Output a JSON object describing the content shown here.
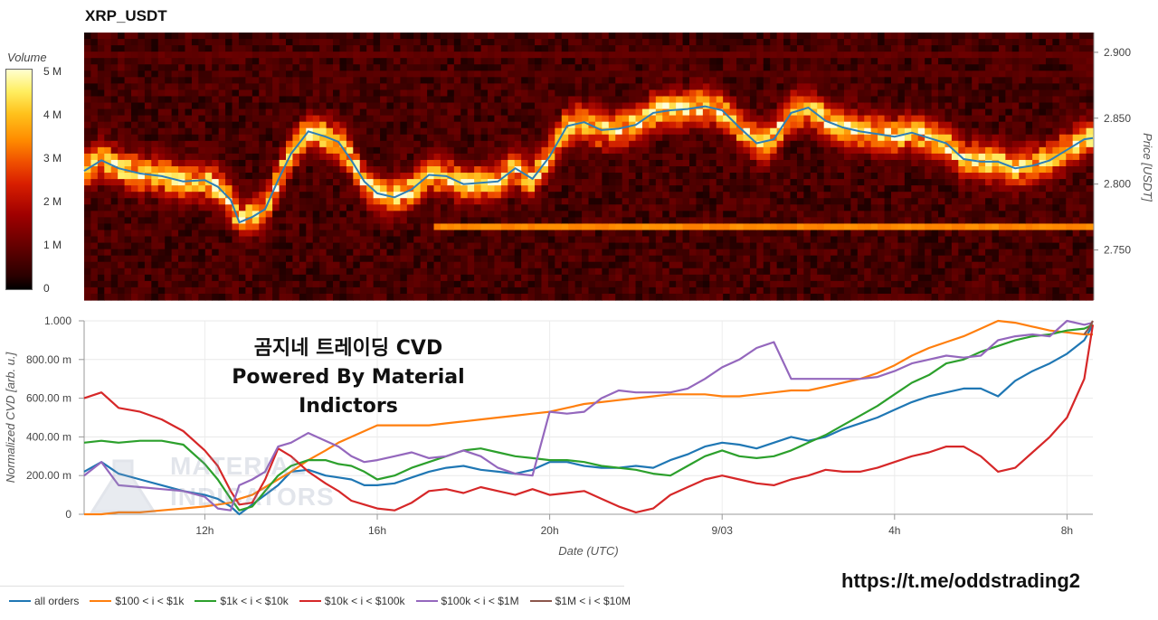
{
  "title": "XRP_USDT",
  "overlay": {
    "line1": "곰지네 트레이딩 CVD",
    "line2": "Powered By Material Indictors"
  },
  "watermark": {
    "line1": "MATERIAL",
    "line2": "INDICATORS"
  },
  "url": "https://t.me/oddstrading2",
  "colors": {
    "all_orders": "#1f77b4",
    "100_1k": "#ff7f0e",
    "1k_10k": "#2ca02c",
    "10k_100k": "#d62728",
    "100k_1M": "#9467bd",
    "1M_10M": "#8c564b"
  },
  "chart_data": [
    {
      "type": "heatmap",
      "colorbar": {
        "title": "Volume",
        "ticks": [
          "5 M",
          "4 M",
          "3 M",
          "2 M",
          "1 M",
          "0"
        ],
        "tick_values": [
          5,
          4,
          3,
          2,
          1,
          0
        ],
        "range": [
          0,
          5.4
        ]
      },
      "yaxis": {
        "label": "Price [USDT]",
        "ticks": [
          "2.900",
          "2.850",
          "2.800",
          "2.750"
        ],
        "tick_values": [
          2.9,
          2.85,
          2.8,
          2.75
        ],
        "range": [
          2.712,
          2.915
        ]
      },
      "x_range_hours": [
        9.2,
        32.6
      ],
      "persistent_bands": [
        {
          "price": 2.768,
          "start_hour": 17.3,
          "end_hour": 32.6,
          "volume": 3.6
        },
        {
          "price": 2.9,
          "start_hour": 9.2,
          "end_hour": 32.6,
          "volume": 0.9
        },
        {
          "price": 2.885,
          "start_hour": 14.8,
          "end_hour": 32.6,
          "volume": 0.7
        }
      ],
      "price_line": {
        "x": [
          9.2,
          9.6,
          10.0,
          10.5,
          11.0,
          11.5,
          12.0,
          12.3,
          12.6,
          12.8,
          13.1,
          13.4,
          13.7,
          14.0,
          14.4,
          14.8,
          15.1,
          15.4,
          15.7,
          16.0,
          16.4,
          16.8,
          17.2,
          17.6,
          18.0,
          18.4,
          18.8,
          19.2,
          19.6,
          20.0,
          20.4,
          20.8,
          21.2,
          21.6,
          22.0,
          22.4,
          22.8,
          23.2,
          23.6,
          24.0,
          24.4,
          24.8,
          25.2,
          25.6,
          26.0,
          26.4,
          26.8,
          27.2,
          27.6,
          28.0,
          28.4,
          28.8,
          29.2,
          29.6,
          30.0,
          30.4,
          30.8,
          31.2,
          31.6,
          32.0,
          32.4,
          32.6
        ],
        "y": [
          2.81,
          2.818,
          2.812,
          2.808,
          2.806,
          2.802,
          2.803,
          2.798,
          2.788,
          2.771,
          2.775,
          2.781,
          2.803,
          2.823,
          2.84,
          2.836,
          2.832,
          2.818,
          2.802,
          2.793,
          2.79,
          2.796,
          2.807,
          2.806,
          2.8,
          2.801,
          2.802,
          2.812,
          2.804,
          2.821,
          2.844,
          2.847,
          2.841,
          2.842,
          2.845,
          2.854,
          2.856,
          2.857,
          2.859,
          2.856,
          2.843,
          2.831,
          2.834,
          2.854,
          2.858,
          2.848,
          2.843,
          2.84,
          2.838,
          2.836,
          2.839,
          2.835,
          2.831,
          2.819,
          2.817,
          2.817,
          2.812,
          2.814,
          2.818,
          2.826,
          2.834,
          2.835
        ],
        "color": "#2f7fb5"
      }
    },
    {
      "type": "line",
      "xlabel": "Date (UTC)",
      "ylabel": "Normalized CVD [arb. u.]",
      "xlim": [
        9.2,
        32.6
      ],
      "ylim": [
        0,
        1.0
      ],
      "xticks": [
        "12h",
        "16h",
        "20h",
        "9/03",
        "4h",
        "8h"
      ],
      "xtick_values": [
        12,
        16,
        20,
        24,
        28,
        32
      ],
      "yticks": [
        "0",
        "200.00 m",
        "400.00 m",
        "600.00 m",
        "800.00 m",
        "1.000"
      ],
      "ytick_values": [
        0,
        0.2,
        0.4,
        0.6,
        0.8,
        1.0
      ],
      "series": [
        {
          "name": "all orders",
          "color": "#1f77b4",
          "x": [
            9.2,
            9.6,
            10.0,
            10.5,
            11.0,
            11.5,
            12.0,
            12.3,
            12.6,
            12.8,
            13.1,
            13.4,
            13.7,
            14.0,
            14.4,
            14.8,
            15.1,
            15.4,
            15.7,
            16.0,
            16.4,
            16.8,
            17.2,
            17.6,
            18.0,
            18.4,
            18.8,
            19.2,
            19.6,
            20.0,
            20.4,
            20.8,
            21.2,
            21.6,
            22.0,
            22.4,
            22.8,
            23.2,
            23.6,
            24.0,
            24.4,
            24.8,
            25.2,
            25.6,
            26.0,
            26.4,
            26.8,
            27.2,
            27.6,
            28.0,
            28.4,
            28.8,
            29.2,
            29.6,
            30.0,
            30.4,
            30.8,
            31.2,
            31.6,
            32.0,
            32.4,
            32.6
          ],
          "y": [
            0.22,
            0.27,
            0.21,
            0.18,
            0.15,
            0.12,
            0.1,
            0.08,
            0.04,
            0.0,
            0.05,
            0.1,
            0.15,
            0.22,
            0.23,
            0.2,
            0.19,
            0.18,
            0.15,
            0.15,
            0.16,
            0.19,
            0.22,
            0.24,
            0.25,
            0.23,
            0.22,
            0.21,
            0.23,
            0.27,
            0.27,
            0.25,
            0.24,
            0.24,
            0.25,
            0.24,
            0.28,
            0.31,
            0.35,
            0.37,
            0.36,
            0.34,
            0.37,
            0.4,
            0.38,
            0.4,
            0.44,
            0.47,
            0.5,
            0.54,
            0.58,
            0.61,
            0.63,
            0.65,
            0.65,
            0.61,
            0.69,
            0.74,
            0.78,
            0.83,
            0.9,
            0.98
          ]
        },
        {
          "name": "$100 < i < $1k",
          "color": "#ff7f0e",
          "x": [
            9.2,
            9.6,
            10.0,
            10.5,
            11.0,
            11.5,
            12.0,
            12.3,
            12.6,
            12.8,
            13.1,
            13.4,
            13.7,
            14.0,
            14.4,
            14.8,
            15.1,
            15.4,
            15.7,
            16.0,
            16.4,
            16.8,
            17.2,
            17.6,
            18.0,
            18.4,
            18.8,
            19.2,
            19.6,
            20.0,
            20.4,
            20.8,
            21.2,
            21.6,
            22.0,
            22.4,
            22.8,
            23.2,
            23.6,
            24.0,
            24.4,
            24.8,
            25.2,
            25.6,
            26.0,
            26.4,
            26.8,
            27.2,
            27.6,
            28.0,
            28.4,
            28.8,
            29.2,
            29.6,
            30.0,
            30.4,
            30.8,
            31.2,
            31.6,
            32.0,
            32.4,
            32.6
          ],
          "y": [
            0.0,
            0.0,
            0.01,
            0.01,
            0.02,
            0.03,
            0.04,
            0.05,
            0.06,
            0.08,
            0.1,
            0.14,
            0.18,
            0.22,
            0.28,
            0.33,
            0.37,
            0.4,
            0.43,
            0.46,
            0.46,
            0.46,
            0.46,
            0.47,
            0.48,
            0.49,
            0.5,
            0.51,
            0.52,
            0.53,
            0.55,
            0.57,
            0.58,
            0.59,
            0.6,
            0.61,
            0.62,
            0.62,
            0.62,
            0.61,
            0.61,
            0.62,
            0.63,
            0.64,
            0.64,
            0.66,
            0.68,
            0.7,
            0.73,
            0.77,
            0.82,
            0.86,
            0.89,
            0.92,
            0.96,
            1.0,
            0.99,
            0.97,
            0.95,
            0.94,
            0.93,
            0.93
          ]
        },
        {
          "name": "$1k < i < $10k",
          "color": "#2ca02c",
          "x": [
            9.2,
            9.6,
            10.0,
            10.5,
            11.0,
            11.5,
            12.0,
            12.3,
            12.6,
            12.8,
            13.1,
            13.4,
            13.7,
            14.0,
            14.4,
            14.8,
            15.1,
            15.4,
            15.7,
            16.0,
            16.4,
            16.8,
            17.2,
            17.6,
            18.0,
            18.4,
            18.8,
            19.2,
            19.6,
            20.0,
            20.4,
            20.8,
            21.2,
            21.6,
            22.0,
            22.4,
            22.8,
            23.2,
            23.6,
            24.0,
            24.4,
            24.8,
            25.2,
            25.6,
            26.0,
            26.4,
            26.8,
            27.2,
            27.6,
            28.0,
            28.4,
            28.8,
            29.2,
            29.6,
            30.0,
            30.4,
            30.8,
            31.2,
            31.6,
            32.0,
            32.4,
            32.6
          ],
          "y": [
            0.37,
            0.38,
            0.37,
            0.38,
            0.38,
            0.36,
            0.26,
            0.18,
            0.08,
            0.02,
            0.04,
            0.12,
            0.2,
            0.25,
            0.28,
            0.28,
            0.26,
            0.25,
            0.22,
            0.18,
            0.2,
            0.24,
            0.27,
            0.3,
            0.33,
            0.34,
            0.32,
            0.3,
            0.29,
            0.28,
            0.28,
            0.27,
            0.25,
            0.24,
            0.23,
            0.21,
            0.2,
            0.25,
            0.3,
            0.33,
            0.3,
            0.29,
            0.3,
            0.33,
            0.37,
            0.41,
            0.46,
            0.51,
            0.56,
            0.62,
            0.68,
            0.72,
            0.78,
            0.8,
            0.84,
            0.87,
            0.9,
            0.92,
            0.93,
            0.95,
            0.96,
            0.98
          ]
        },
        {
          "name": "$10k < i < $100k",
          "color": "#d62728",
          "x": [
            9.2,
            9.6,
            10.0,
            10.5,
            11.0,
            11.5,
            12.0,
            12.3,
            12.6,
            12.8,
            13.1,
            13.4,
            13.7,
            14.0,
            14.4,
            14.8,
            15.1,
            15.4,
            15.7,
            16.0,
            16.4,
            16.8,
            17.2,
            17.6,
            18.0,
            18.4,
            18.8,
            19.2,
            19.6,
            20.0,
            20.4,
            20.8,
            21.2,
            21.6,
            22.0,
            22.4,
            22.8,
            23.2,
            23.6,
            24.0,
            24.4,
            24.8,
            25.2,
            25.6,
            26.0,
            26.4,
            26.8,
            27.2,
            27.6,
            28.0,
            28.4,
            28.8,
            29.2,
            29.6,
            30.0,
            30.4,
            30.8,
            31.2,
            31.6,
            32.0,
            32.4,
            32.6
          ],
          "y": [
            0.6,
            0.63,
            0.55,
            0.53,
            0.49,
            0.43,
            0.33,
            0.25,
            0.12,
            0.05,
            0.06,
            0.18,
            0.34,
            0.3,
            0.22,
            0.16,
            0.12,
            0.07,
            0.05,
            0.03,
            0.02,
            0.06,
            0.12,
            0.13,
            0.11,
            0.14,
            0.12,
            0.1,
            0.13,
            0.1,
            0.11,
            0.12,
            0.08,
            0.04,
            0.01,
            0.03,
            0.1,
            0.14,
            0.18,
            0.2,
            0.18,
            0.16,
            0.15,
            0.18,
            0.2,
            0.23,
            0.22,
            0.22,
            0.24,
            0.27,
            0.3,
            0.32,
            0.35,
            0.35,
            0.3,
            0.22,
            0.24,
            0.32,
            0.4,
            0.5,
            0.7,
            0.98
          ]
        },
        {
          "name": "$100k < i < $1M",
          "color": "#9467bd",
          "x": [
            9.2,
            9.6,
            10.0,
            10.5,
            11.0,
            11.5,
            12.0,
            12.3,
            12.6,
            12.8,
            13.1,
            13.4,
            13.7,
            14.0,
            14.4,
            14.8,
            15.1,
            15.4,
            15.7,
            16.0,
            16.4,
            16.8,
            17.2,
            17.6,
            18.0,
            18.4,
            18.8,
            19.2,
            19.6,
            20.0,
            20.4,
            20.8,
            21.2,
            21.6,
            22.0,
            22.4,
            22.8,
            23.2,
            23.6,
            24.0,
            24.4,
            24.8,
            25.2,
            25.6,
            26.0,
            26.4,
            26.8,
            27.2,
            27.6,
            28.0,
            28.4,
            28.8,
            29.2,
            29.6,
            30.0,
            30.4,
            30.8,
            31.2,
            31.6,
            32.0,
            32.4,
            32.6
          ],
          "y": [
            0.2,
            0.27,
            0.15,
            0.14,
            0.13,
            0.12,
            0.09,
            0.03,
            0.02,
            0.15,
            0.18,
            0.22,
            0.35,
            0.37,
            0.42,
            0.38,
            0.35,
            0.3,
            0.27,
            0.28,
            0.3,
            0.32,
            0.29,
            0.3,
            0.33,
            0.3,
            0.24,
            0.21,
            0.2,
            0.53,
            0.52,
            0.53,
            0.6,
            0.64,
            0.63,
            0.63,
            0.63,
            0.65,
            0.7,
            0.76,
            0.8,
            0.86,
            0.89,
            0.7,
            0.7,
            0.7,
            0.7,
            0.7,
            0.71,
            0.74,
            0.78,
            0.8,
            0.82,
            0.81,
            0.82,
            0.9,
            0.92,
            0.93,
            0.92,
            1.0,
            0.98,
            0.99
          ]
        },
        {
          "name": "$1M < i < $10M",
          "color": "#8c564b",
          "x": [
            32.4,
            32.5,
            32.6
          ],
          "y": [
            0.93,
            0.96,
            1.0
          ]
        }
      ]
    }
  ]
}
